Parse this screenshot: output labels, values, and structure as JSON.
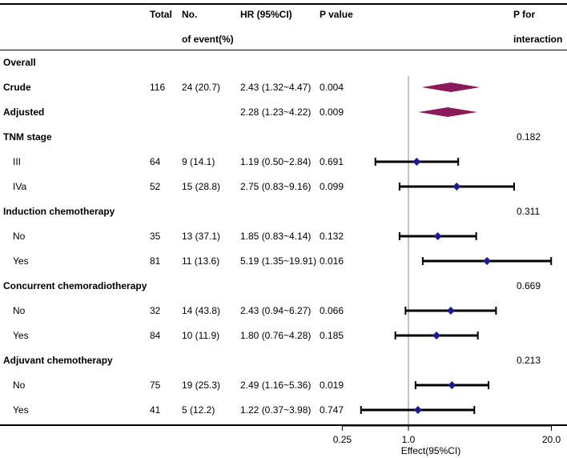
{
  "headers": {
    "total": "Total",
    "events_1": "No.",
    "events_2": "of event(%)",
    "hr": "HR (95%CI)",
    "p": "P value",
    "p_int_1": "P for",
    "p_int_2": "interaction"
  },
  "rows": [
    {
      "label": "Overall",
      "bold": true,
      "total": "",
      "events": "",
      "hr": "",
      "p": "",
      "p_int": ""
    },
    {
      "label": "Crude",
      "bold": true,
      "total": "116",
      "events": "24 (20.7)",
      "hr": "2.43 (1.32~4.47)",
      "p": "0.004",
      "p_int": ""
    },
    {
      "label": "Adjusted",
      "bold": true,
      "total": "",
      "events": "",
      "hr": "2.28 (1.23~4.22)",
      "p": "0.009",
      "p_int": ""
    },
    {
      "label": "TNM stage",
      "bold": true,
      "total": "",
      "events": "",
      "hr": "",
      "p": "",
      "p_int": "0.182"
    },
    {
      "label": "III",
      "bold": false,
      "total": "64",
      "events": "9 (14.1)",
      "hr": "1.19 (0.50~2.84)",
      "p": "0.691",
      "p_int": ""
    },
    {
      "label": "IVa",
      "bold": false,
      "total": "52",
      "events": "15 (28.8)",
      "hr": "2.75 (0.83~9.16)",
      "p": "0.099",
      "p_int": ""
    },
    {
      "label": "Induction chemotherapy",
      "bold": true,
      "total": "",
      "events": "",
      "hr": "",
      "p": "",
      "p_int": "0.311"
    },
    {
      "label": "No",
      "bold": false,
      "total": "35",
      "events": "13 (37.1)",
      "hr": "1.85 (0.83~4.14)",
      "p": "0.132",
      "p_int": ""
    },
    {
      "label": "Yes",
      "bold": false,
      "total": "81",
      "events": "11 (13.6)",
      "hr": "5.19 (1.35~19.91)",
      "p": "0.016",
      "p_int": ""
    },
    {
      "label": "Concurrent chemoradiotherapy",
      "bold": true,
      "total": "",
      "events": "",
      "hr": "",
      "p": "",
      "p_int": "0.669"
    },
    {
      "label": "No",
      "bold": false,
      "total": "32",
      "events": "14 (43.8)",
      "hr": "2.43 (0.94~6.27)",
      "p": "0.066",
      "p_int": ""
    },
    {
      "label": "Yes",
      "bold": false,
      "total": "84",
      "events": "10 (11.9)",
      "hr": "1.80 (0.76~4.28)",
      "p": "0.185",
      "p_int": ""
    },
    {
      "label": "Adjuvant chemotherapy",
      "bold": true,
      "total": "",
      "events": "",
      "hr": "",
      "p": "",
      "p_int": "0.213"
    },
    {
      "label": "No",
      "bold": false,
      "total": "75",
      "events": "19 (25.3)",
      "hr": "2.49 (1.16~5.36)",
      "p": "0.019",
      "p_int": ""
    },
    {
      "label": "Yes",
      "bold": false,
      "total": "41",
      "events": "5 (12.2)",
      "hr": "1.22 (0.37~3.98)",
      "p": "0.747",
      "p_int": ""
    }
  ],
  "chart_data": {
    "type": "forest",
    "xlabel": "Effect(95%CI)",
    "x_scale": "log",
    "xlim": [
      0.25,
      20.0
    ],
    "x_ticks": [
      0.25,
      1.0,
      20.0
    ],
    "x_tick_labels": [
      "0.25",
      "1.0",
      "20.0"
    ],
    "reference_line": 1.0,
    "estimates": [
      {
        "row": 1,
        "label": "Crude",
        "hr": 2.43,
        "lo": 1.32,
        "hi": 4.47,
        "shape": "diamond-summary",
        "color": "#8b1a5a"
      },
      {
        "row": 2,
        "label": "Adjusted",
        "hr": 2.28,
        "lo": 1.23,
        "hi": 4.22,
        "shape": "diamond-summary",
        "color": "#8b1a5a"
      },
      {
        "row": 4,
        "label": "TNM stage III",
        "hr": 1.19,
        "lo": 0.5,
        "hi": 2.84,
        "shape": "point",
        "color": "#1a1a8c"
      },
      {
        "row": 5,
        "label": "TNM stage IVa",
        "hr": 2.75,
        "lo": 0.83,
        "hi": 9.16,
        "shape": "point",
        "color": "#1a1a8c"
      },
      {
        "row": 7,
        "label": "Induction chemotherapy No",
        "hr": 1.85,
        "lo": 0.83,
        "hi": 4.14,
        "shape": "point",
        "color": "#1a1a8c"
      },
      {
        "row": 8,
        "label": "Induction chemotherapy Yes",
        "hr": 5.19,
        "lo": 1.35,
        "hi": 19.91,
        "shape": "point",
        "color": "#1a1a8c"
      },
      {
        "row": 10,
        "label": "Concurrent chemoradiotherapy No",
        "hr": 2.43,
        "lo": 0.94,
        "hi": 6.27,
        "shape": "point",
        "color": "#1a1a8c"
      },
      {
        "row": 11,
        "label": "Concurrent chemoradiotherapy Yes",
        "hr": 1.8,
        "lo": 0.76,
        "hi": 4.28,
        "shape": "point",
        "color": "#1a1a8c"
      },
      {
        "row": 13,
        "label": "Adjuvant chemotherapy No",
        "hr": 2.49,
        "lo": 1.16,
        "hi": 5.36,
        "shape": "point",
        "color": "#1a1a8c"
      },
      {
        "row": 14,
        "label": "Adjuvant chemotherapy Yes",
        "hr": 1.22,
        "lo": 0.37,
        "hi": 3.98,
        "shape": "point",
        "color": "#1a1a8c"
      }
    ]
  }
}
